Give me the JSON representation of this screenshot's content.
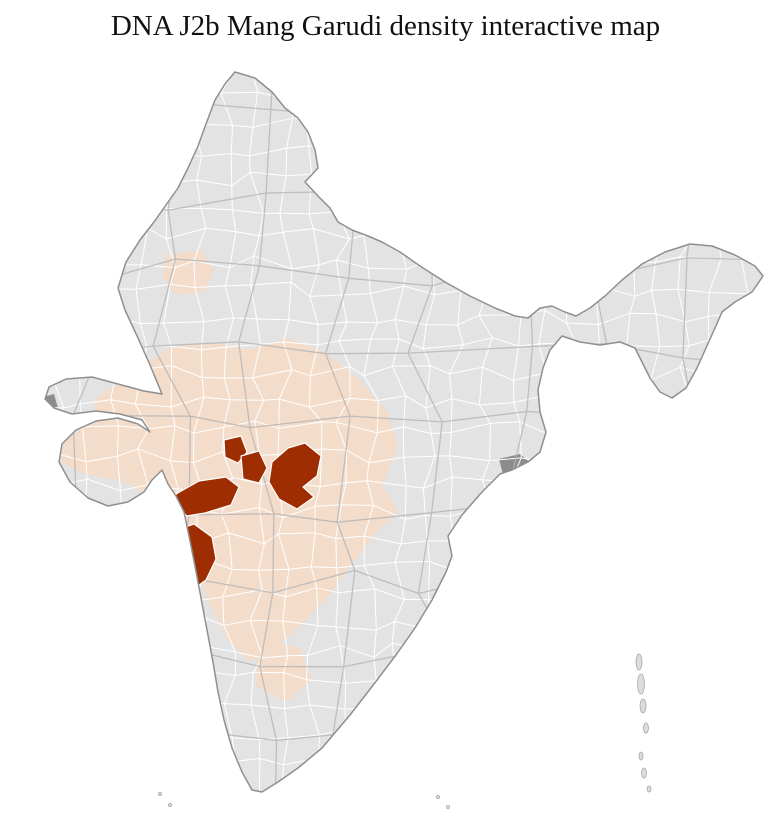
{
  "title": "DNA J2b Mang Garudi density interactive map",
  "map": {
    "region": "India",
    "kind": "district choropleth"
  },
  "colors": {
    "background": "#ffffff",
    "district_default": "#e3e3e3",
    "district_low_density": "#f3dcca",
    "district_high_density": "#9e2d01",
    "district_border": "#ffffff",
    "state_border": "#b4b4b4",
    "outer_border": "#8f8f8f",
    "dark_patch": "#8c8c8c",
    "island": "#dcdcdc"
  }
}
